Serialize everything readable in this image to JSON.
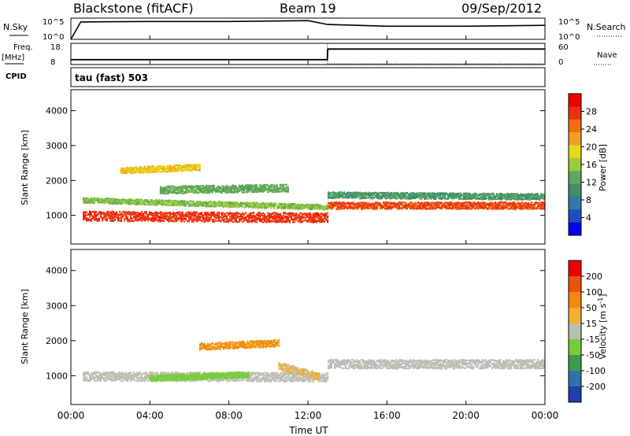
{
  "header": {
    "station": "Blackstone (fitACF)",
    "beam": "Beam 19",
    "date": "09/Sep/2012"
  },
  "top_panels": {
    "nsky_label": "N.Sky",
    "nsky_ticks": [
      "10^5",
      "10^0"
    ],
    "nsearch_label": "N.Search",
    "nsearch_ticks": [
      "10^5",
      "10^0"
    ],
    "freq_label": "Freq.",
    "freq_unit": "[MHz]",
    "freq_ticks": [
      "18",
      "8"
    ],
    "nave_label": "Nave",
    "nave_ticks": [
      "60",
      "0"
    ],
    "cpid_label": "CPID",
    "cpid_value": "tau (fast) 503"
  },
  "colors": {
    "power": [
      "#0000ee",
      "#1a4fbf",
      "#2f7aa8",
      "#3f8f6a",
      "#5fa85a",
      "#9bcc3c",
      "#e8d81a",
      "#f0a020",
      "#f07010",
      "#ee3010",
      "#ee0000"
    ],
    "velocity": [
      "#1f3fae",
      "#2e72a8",
      "#3d9b50",
      "#77cc3a",
      "#bdbdb5",
      "#f0b030",
      "#f08a10",
      "#ee5010",
      "#ee0000"
    ]
  },
  "chart_data": [
    {
      "type": "line",
      "title": "N.Sky / N.Search",
      "x": [
        "00:00",
        "00:30",
        "04:00",
        "08:00",
        "12:00",
        "13:00",
        "16:00",
        "20:00",
        "24:00"
      ],
      "series": [
        {
          "name": "N.Sky",
          "values": [
            0.0,
            0.82,
            0.84,
            0.84,
            0.88,
            0.7,
            0.62,
            0.62,
            0.66
          ]
        }
      ],
      "ylim": [
        0,
        5
      ],
      "yscale": "log10"
    },
    {
      "type": "line",
      "title": "Freq. / Nave",
      "x": [
        "00:00",
        "12:59",
        "13:00",
        "24:00"
      ],
      "series": [
        {
          "name": "Freq.",
          "values": [
            10.3,
            10.3,
            15.3,
            15.3
          ]
        },
        {
          "name": "Nave",
          "values": [
            60,
            60,
            0,
            0
          ]
        }
      ],
      "ylim": [
        8,
        18
      ]
    },
    {
      "type": "heatmap",
      "title": "Power",
      "xlabel": "Time UT",
      "ylabel": "Slant Range [km]",
      "xlim": [
        0,
        24
      ],
      "ylim": [
        180,
        4600
      ],
      "x_ticks": [
        "00:00",
        "04:00",
        "08:00",
        "12:00",
        "16:00",
        "20:00",
        "00:00"
      ],
      "y_ticks": [
        "1000",
        "2000",
        "3000",
        "4000"
      ],
      "colorbar_label": "Power [dB]",
      "colorbar_ticks": [
        "4",
        "8",
        "12",
        "16",
        "20",
        "24",
        "28"
      ],
      "colorbar_range": [
        0,
        30
      ],
      "bands": [
        {
          "t": [
            0.6,
            13.0
          ],
          "center_start": 1000,
          "center_end": 950,
          "width": 280,
          "value": 27
        },
        {
          "t": [
            0.6,
            13.0
          ],
          "center_start": 1450,
          "center_end": 1250,
          "width": 150,
          "value": 14
        },
        {
          "t": [
            4.5,
            11.0
          ],
          "center_start": 1750,
          "center_end": 1800,
          "width": 220,
          "value": 12
        },
        {
          "t": [
            2.5,
            6.5
          ],
          "center_start": 2300,
          "center_end": 2400,
          "width": 180,
          "value": 19
        },
        {
          "t": [
            13.0,
            24.0
          ],
          "center_start": 1300,
          "center_end": 1300,
          "width": 200,
          "value": 26
        },
        {
          "t": [
            13.0,
            24.0
          ],
          "center_start": 1600,
          "center_end": 1550,
          "width": 180,
          "value": 10
        }
      ]
    },
    {
      "type": "heatmap",
      "title": "Velocity",
      "xlabel": "Time UT",
      "ylabel": "Slant Range [km]",
      "xlim": [
        0,
        24
      ],
      "ylim": [
        180,
        4600
      ],
      "x_ticks": [
        "00:00",
        "04:00",
        "08:00",
        "12:00",
        "16:00",
        "20:00",
        "00:00"
      ],
      "y_ticks": [
        "1000",
        "2000",
        "3000",
        "4000"
      ],
      "colorbar_label": "Velocity [m s^-1]",
      "colorbar_ticks": [
        "200",
        "100",
        "50",
        "15",
        "-15",
        "-50",
        "-100",
        "-200"
      ],
      "colorbar_range": [
        -250,
        250
      ],
      "bands": [
        {
          "t": [
            0.6,
            13.0
          ],
          "center_start": 1000,
          "center_end": 980,
          "width": 260,
          "value": 0
        },
        {
          "t": [
            4.0,
            9.0
          ],
          "center_start": 950,
          "center_end": 1050,
          "width": 180,
          "value": -60
        },
        {
          "t": [
            6.5,
            10.5
          ],
          "center_start": 1850,
          "center_end": 1950,
          "width": 200,
          "value": 100
        },
        {
          "t": [
            10.5,
            12.5
          ],
          "center_start": 1300,
          "center_end": 1000,
          "width": 220,
          "value": 40
        },
        {
          "t": [
            13.0,
            24.0
          ],
          "center_start": 1350,
          "center_end": 1350,
          "width": 260,
          "value": 0
        }
      ]
    }
  ],
  "axis": {
    "x_label": "Time UT",
    "y_label": "Slant Range [km]",
    "power_label": "Power [dB]",
    "velocity_label": "Velocity [m s",
    "velocity_sup": "-1",
    "velocity_close": "]"
  }
}
